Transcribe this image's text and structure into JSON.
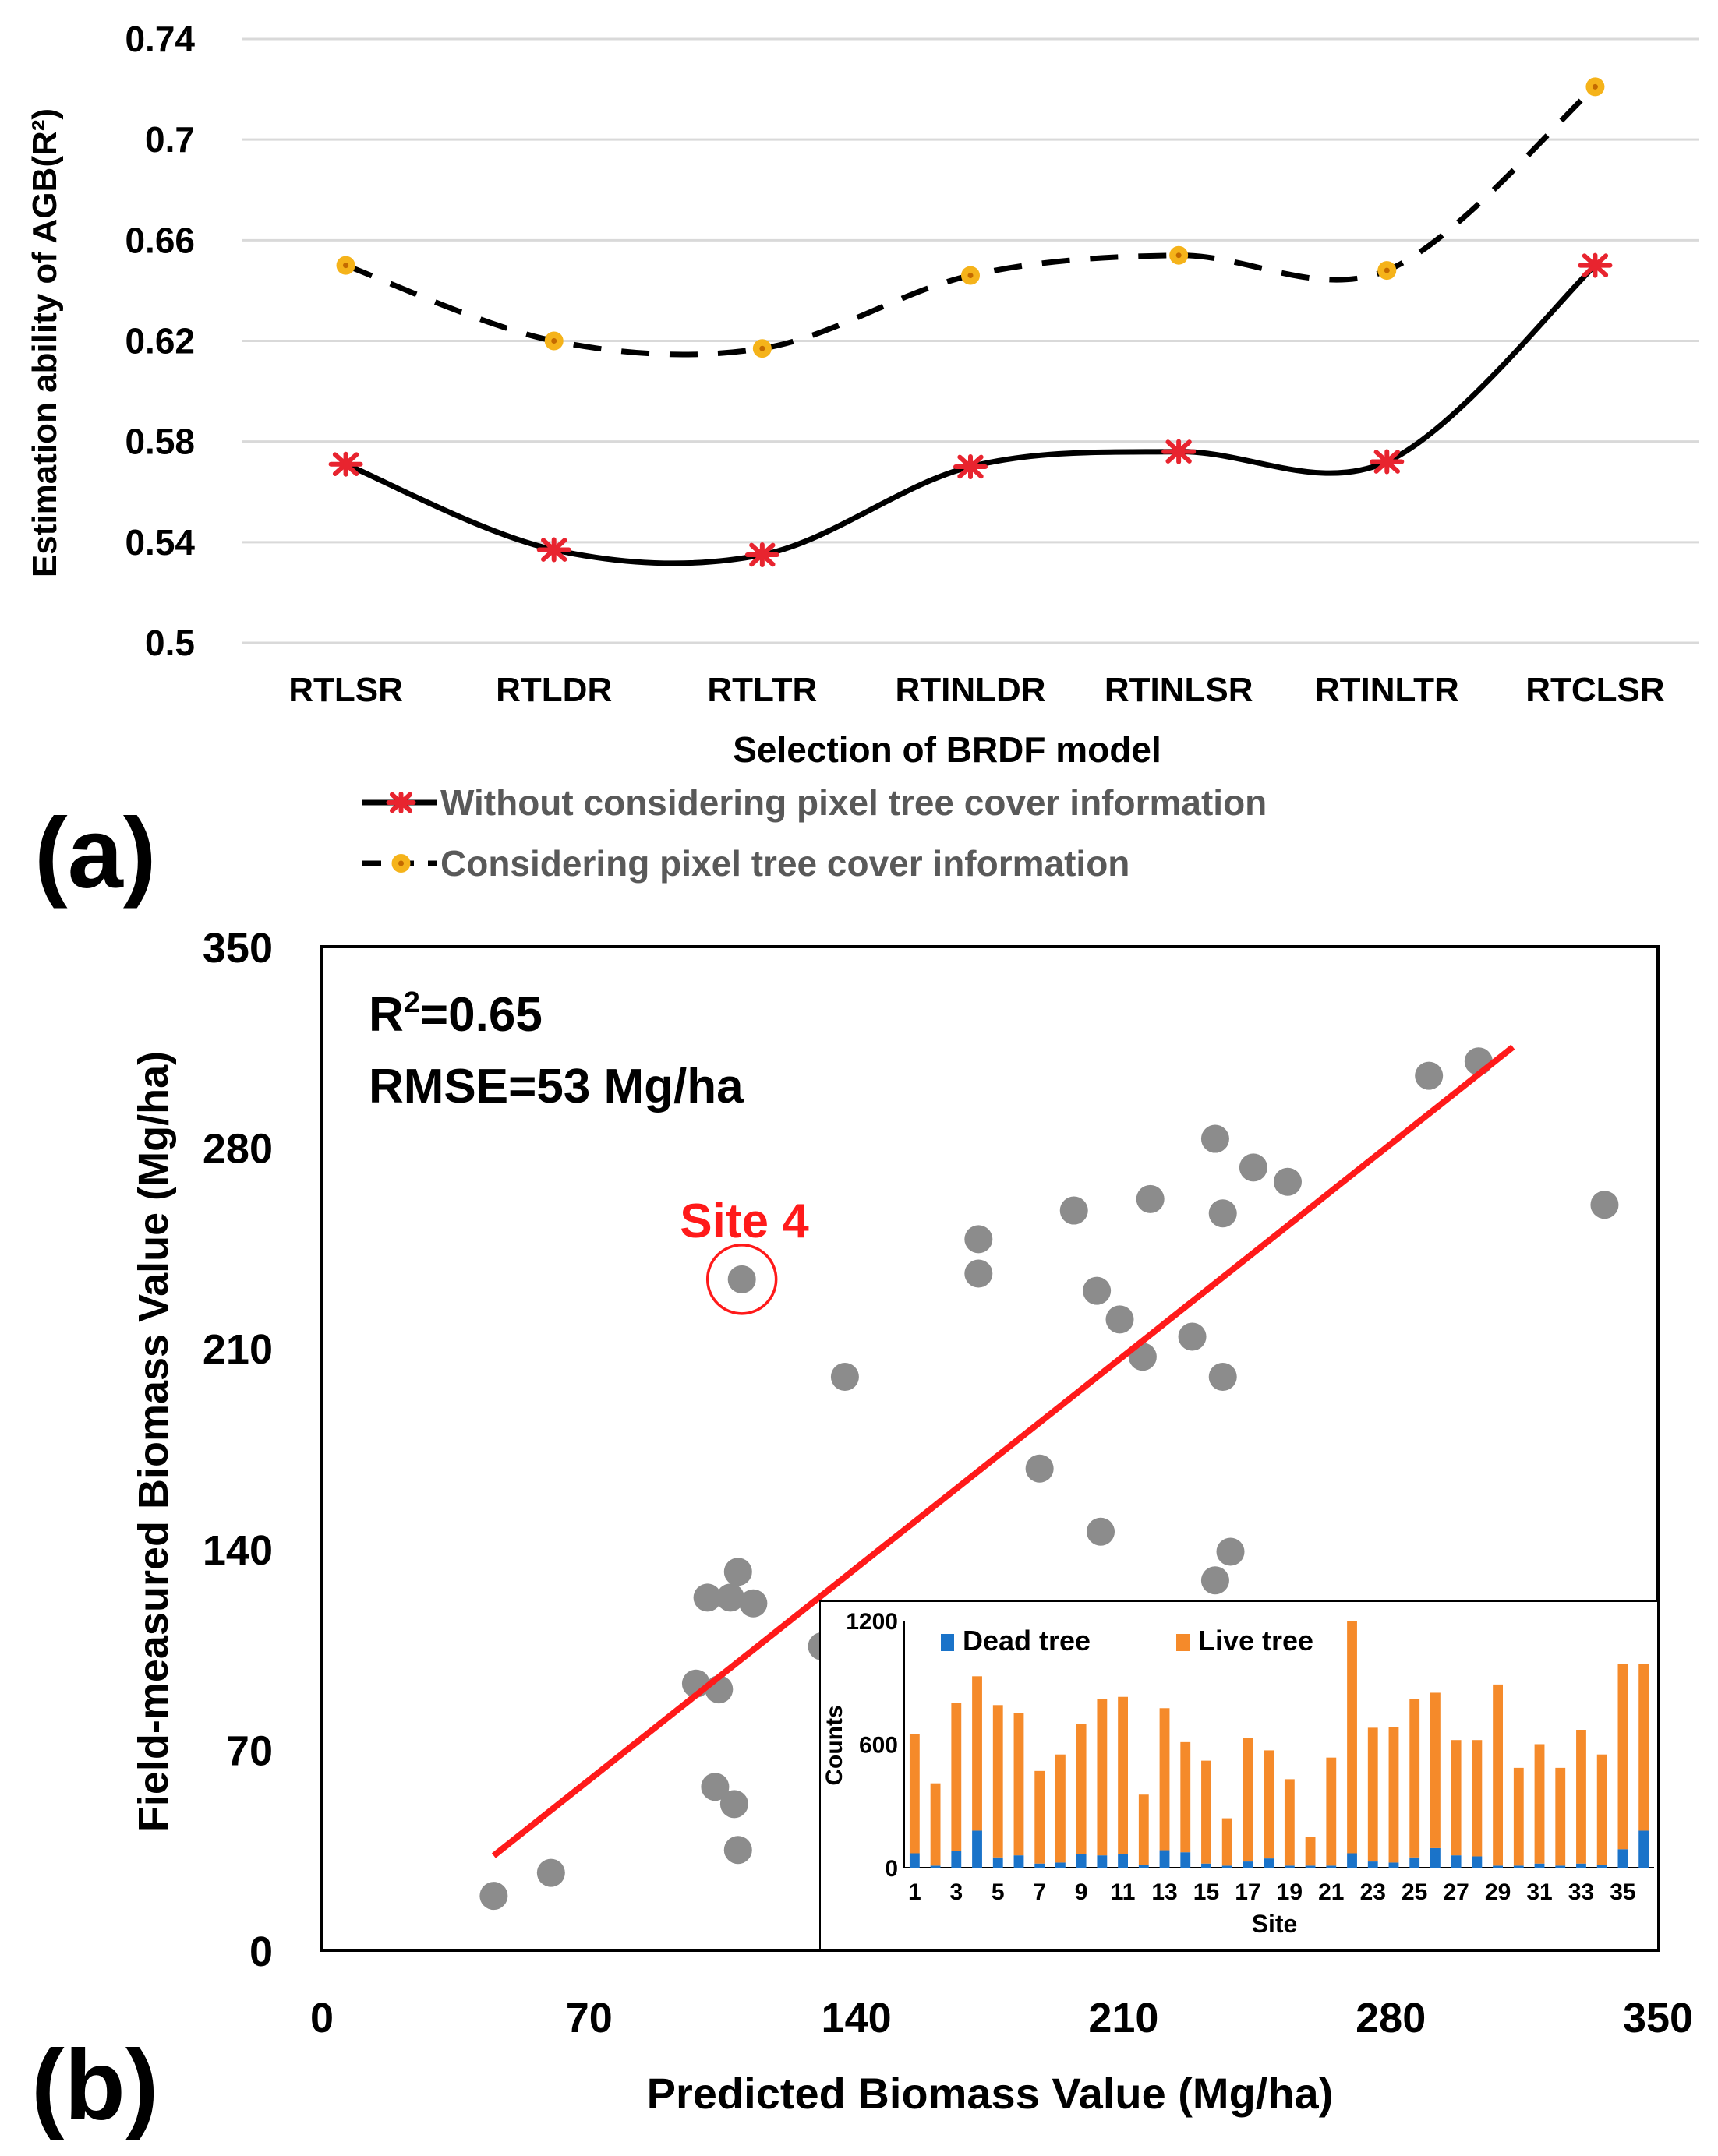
{
  "panel_a": {
    "label": "(a)",
    "legend": {
      "without": "Without considering pixel tree cover information",
      "with": "Considering pixel tree cover information"
    }
  },
  "panel_b": {
    "label": "(b)",
    "annotation": "Site 4",
    "stats": {
      "r2_prefix": "R",
      "r2_sup": "2",
      "r2_value": "=0.65",
      "rmse": "RMSE=53 Mg/ha"
    }
  },
  "colors": {
    "without_line": "#000000",
    "without_marker": "#e8242f",
    "with_line": "#000000",
    "with_marker": "#f5b31a",
    "scatter_point": "#8c8c8c",
    "fit_line": "#ff1a1a",
    "dead_tree": "#1a73c9",
    "live_tree": "#f58a2a",
    "grid": "#d9d9d9"
  },
  "chart_data": [
    {
      "type": "line",
      "title": "",
      "xlabel": "Selection of  BRDF model",
      "ylabel": "Estimation ability of AGB(R²)",
      "categories": [
        "RTLSR",
        "RTLDR",
        "RTLTR",
        "RTINLDR",
        "RTINLSR",
        "RTINLTR",
        "RTCLSR"
      ],
      "ylim": [
        0.5,
        0.74
      ],
      "yticks": [
        "0.5",
        "0.54",
        "0.58",
        "0.62",
        "0.66",
        "0.7",
        "0.74"
      ],
      "grid": true,
      "legend_position": "bottom",
      "series": [
        {
          "name": "Without considering pixel tree cover information",
          "style": "solid",
          "marker": "asterisk",
          "values": [
            0.571,
            0.537,
            0.535,
            0.57,
            0.576,
            0.572,
            0.65
          ]
        },
        {
          "name": "Considering pixel tree cover information",
          "style": "dashed",
          "marker": "dot",
          "values": [
            0.65,
            0.62,
            0.617,
            0.646,
            0.654,
            0.648,
            0.721
          ]
        }
      ]
    },
    {
      "type": "scatter",
      "title": "",
      "xlabel": "Predicted Biomass Value (Mg/ha)",
      "ylabel": "Field-measured Biomass Value  (Mg/ha)",
      "xlim": [
        0,
        350
      ],
      "ylim": [
        0,
        350
      ],
      "xticks": [
        "0",
        "70",
        "140",
        "210",
        "280",
        "350"
      ],
      "yticks": [
        "0",
        "70",
        "140",
        "210",
        "280",
        "350"
      ],
      "r2": 0.65,
      "rmse": 53,
      "fit_line": {
        "x": [
          45,
          312
        ],
        "y": [
          33,
          315
        ]
      },
      "highlight": {
        "label": "Site 4",
        "x": 110,
        "y": 234
      },
      "points": [
        {
          "x": 45,
          "y": 19
        },
        {
          "x": 60,
          "y": 27
        },
        {
          "x": 98,
          "y": 93
        },
        {
          "x": 101,
          "y": 123
        },
        {
          "x": 103,
          "y": 57
        },
        {
          "x": 104,
          "y": 91
        },
        {
          "x": 107,
          "y": 123
        },
        {
          "x": 108,
          "y": 51
        },
        {
          "x": 109,
          "y": 35
        },
        {
          "x": 109,
          "y": 132
        },
        {
          "x": 113,
          "y": 121
        },
        {
          "x": 110,
          "y": 234
        },
        {
          "x": 131,
          "y": 106
        },
        {
          "x": 137,
          "y": 200
        },
        {
          "x": 172,
          "y": 248
        },
        {
          "x": 172,
          "y": 236
        },
        {
          "x": 188,
          "y": 168
        },
        {
          "x": 197,
          "y": 258
        },
        {
          "x": 203,
          "y": 230
        },
        {
          "x": 204,
          "y": 146
        },
        {
          "x": 209,
          "y": 220
        },
        {
          "x": 215,
          "y": 207
        },
        {
          "x": 217,
          "y": 262
        },
        {
          "x": 228,
          "y": 214
        },
        {
          "x": 234,
          "y": 283
        },
        {
          "x": 234,
          "y": 129
        },
        {
          "x": 236,
          "y": 257
        },
        {
          "x": 236,
          "y": 200
        },
        {
          "x": 238,
          "y": 139
        },
        {
          "x": 244,
          "y": 273
        },
        {
          "x": 253,
          "y": 268
        },
        {
          "x": 290,
          "y": 305
        },
        {
          "x": 303,
          "y": 310
        },
        {
          "x": 336,
          "y": 260
        }
      ]
    },
    {
      "type": "bar",
      "title": "",
      "xlabel": "Site",
      "ylabel": "Counts",
      "stacked": true,
      "legend_position": "top-left",
      "ylim": [
        0,
        1200
      ],
      "yticks": [
        "0",
        "600",
        "1200"
      ],
      "xtick_labels": [
        "1",
        "3",
        "5",
        "7",
        "9",
        "11",
        "13",
        "15",
        "17",
        "19",
        "21",
        "23",
        "25",
        "27",
        "29",
        "31",
        "33",
        "35"
      ],
      "categories": [
        "1",
        "2",
        "3",
        "4",
        "5",
        "6",
        "7",
        "8",
        "9",
        "10",
        "11",
        "12",
        "13",
        "14",
        "15",
        "16",
        "17",
        "18",
        "19",
        "20",
        "21",
        "22",
        "23",
        "24",
        "25",
        "26",
        "27",
        "28",
        "29",
        "30",
        "31",
        "32",
        "33",
        "34",
        "35",
        "36"
      ],
      "series": [
        {
          "name": "Dead tree",
          "values": [
            70,
            10,
            80,
            180,
            50,
            60,
            20,
            25,
            65,
            60,
            65,
            15,
            85,
            75,
            20,
            10,
            30,
            45,
            10,
            10,
            10,
            70,
            30,
            25,
            50,
            95,
            60,
            55,
            10,
            10,
            20,
            10,
            20,
            15,
            90,
            180
          ]
        },
        {
          "name": "Live tree",
          "values": [
            580,
            400,
            720,
            750,
            740,
            690,
            450,
            525,
            635,
            760,
            765,
            340,
            690,
            535,
            500,
            230,
            600,
            525,
            420,
            140,
            525,
            1130,
            650,
            660,
            770,
            755,
            560,
            565,
            880,
            475,
            580,
            475,
            650,
            535,
            900,
            810
          ]
        }
      ]
    }
  ]
}
